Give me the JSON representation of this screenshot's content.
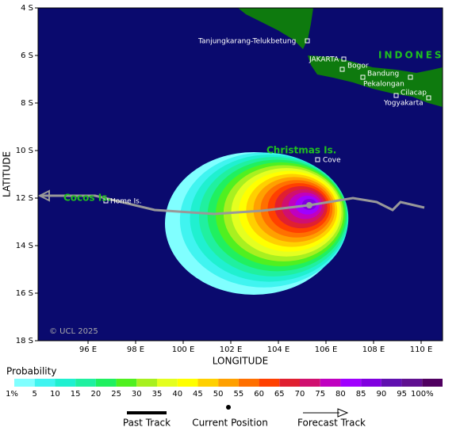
{
  "map": {
    "lat_ticks": [
      {
        "value": 4,
        "label": "4 S"
      },
      {
        "value": 6,
        "label": "6 S"
      },
      {
        "value": 8,
        "label": "8 S"
      },
      {
        "value": 10,
        "label": "10 S"
      },
      {
        "value": 12,
        "label": "12 S"
      },
      {
        "value": 14,
        "label": "14 S"
      },
      {
        "value": 16,
        "label": "16 S"
      },
      {
        "value": 18,
        "label": "18 S"
      }
    ],
    "lon_ticks": [
      {
        "value": 96,
        "label": "96 E"
      },
      {
        "value": 98,
        "label": "98 E"
      },
      {
        "value": 100,
        "label": "100 E"
      },
      {
        "value": 102,
        "label": "102 E"
      },
      {
        "value": 104,
        "label": "104 E"
      },
      {
        "value": 106,
        "label": "106 E"
      },
      {
        "value": 108,
        "label": "108 E"
      },
      {
        "value": 110,
        "label": "110 E"
      }
    ],
    "y_label": "LATITUDE",
    "x_label": "LONGITUDE",
    "places": [
      "Tanjungkarang-Telukbetung",
      "JAKARTA",
      "Bogor",
      "Bandung",
      "Pekalongan",
      "Cilacap",
      "Yogyakarta",
      "Cove",
      "Home Is."
    ],
    "regions": [
      "INDONES",
      "Christmas Is.",
      "Cocos Is."
    ],
    "copyright": "© UCL 2025"
  },
  "legend": {
    "title": "Probability",
    "items": [
      {
        "label": "1%",
        "color": "#80ffff"
      },
      {
        "label": "5",
        "color": "#40f4f0"
      },
      {
        "label": "10",
        "color": "#20f0d0"
      },
      {
        "label": "15",
        "color": "#20f0a0"
      },
      {
        "label": "20",
        "color": "#20f060"
      },
      {
        "label": "25",
        "color": "#50f020"
      },
      {
        "label": "30",
        "color": "#a8f020"
      },
      {
        "label": "35",
        "color": "#e4ff20"
      },
      {
        "label": "40",
        "color": "#ffff00"
      },
      {
        "label": "45",
        "color": "#ffd000"
      },
      {
        "label": "50",
        "color": "#ffa000"
      },
      {
        "label": "55",
        "color": "#ff7000"
      },
      {
        "label": "60",
        "color": "#ff4000"
      },
      {
        "label": "65",
        "color": "#e02030"
      },
      {
        "label": "70",
        "color": "#d01070"
      },
      {
        "label": "75",
        "color": "#c000c0"
      },
      {
        "label": "80",
        "color": "#a000ff"
      },
      {
        "label": "85",
        "color": "#8000e0"
      },
      {
        "label": "90",
        "color": "#6010b0"
      },
      {
        "label": "95",
        "color": "#601090"
      },
      {
        "label": "100%",
        "color": "#500060"
      }
    ],
    "past_track": "Past Track",
    "current_position": "Current Position",
    "forecast_track": "Forecast Track"
  }
}
